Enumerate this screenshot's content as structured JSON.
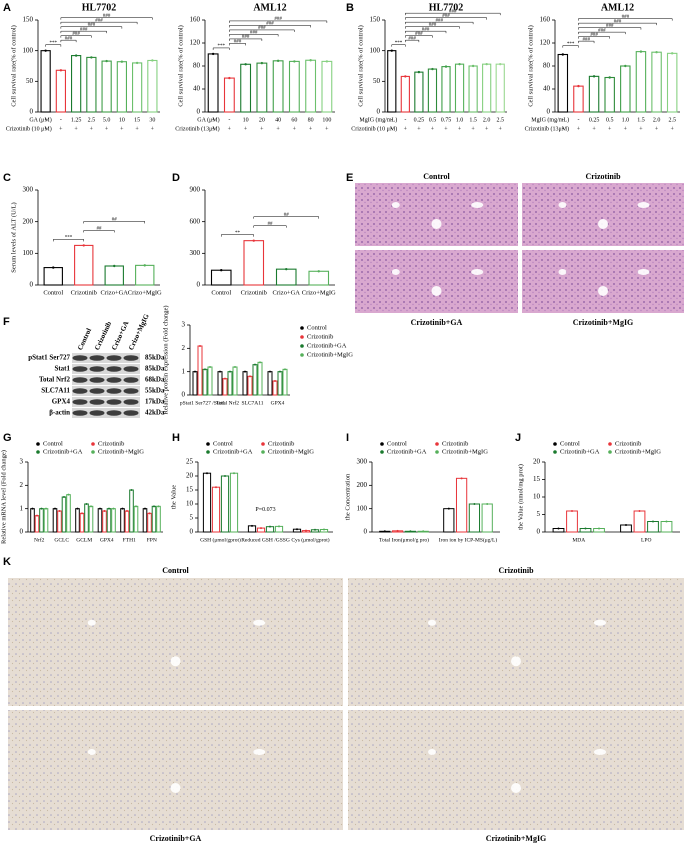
{
  "panels": [
    "A",
    "B",
    "C",
    "D",
    "E",
    "F",
    "G",
    "H",
    "I",
    "J",
    "K"
  ],
  "chart_data": [
    {
      "type": "bar",
      "title": "HL7702",
      "ylabel": "Cell survival rate(% of control)",
      "categories": [
        "-",
        "-",
        "1.25",
        "2.5",
        "5.0",
        "10",
        "15",
        "30"
      ],
      "row_labels": [
        "GA (μM)",
        "Crizotinib (10 μM)"
      ],
      "second_row": [
        "-",
        "+",
        "+",
        "+",
        "+",
        "+",
        "+",
        "+"
      ],
      "values": [
        100,
        68,
        92,
        89,
        83,
        82,
        80,
        84
      ],
      "colors": [
        "#000000",
        "#e8353a",
        "#1a7a2e",
        "#2e8b3a",
        "#3f9e48",
        "#55b05a",
        "#6cc06c",
        "#86d080"
      ],
      "ylim": [
        0,
        150
      ],
      "yticks": [
        0,
        50,
        100,
        150
      ],
      "annotations": [
        "***",
        "###",
        "###",
        "###",
        "###",
        "###",
        "###"
      ]
    },
    {
      "type": "bar",
      "title": "AML12",
      "ylabel": "Cell survival rate(% of control)",
      "categories": [
        "-",
        "-",
        "10",
        "20",
        "40",
        "60",
        "80",
        "100"
      ],
      "row_labels": [
        "GA (μM)",
        "Crizotinib (13μM)"
      ],
      "second_row": [
        "-",
        "+",
        "+",
        "+",
        "+",
        "+",
        "+",
        "+"
      ],
      "values": [
        101,
        59,
        83,
        85,
        89,
        88,
        90,
        88
      ],
      "colors": [
        "#000000",
        "#e8353a",
        "#1a7a2e",
        "#2e8b3a",
        "#3f9e48",
        "#55b05a",
        "#6cc06c",
        "#86d080"
      ],
      "ylim": [
        0,
        160
      ],
      "yticks": [
        0,
        40,
        80,
        120,
        160
      ],
      "annotations": [
        "***",
        "###",
        "###",
        "###",
        "###",
        "###",
        "###"
      ]
    },
    {
      "type": "bar",
      "title": "HL7702",
      "ylabel": "Cell survival rate(% of control)",
      "categories": [
        "-",
        "-",
        "0.25",
        "0.5",
        "0.75",
        "1.0",
        "1.5",
        "2.0",
        "2.5"
      ],
      "row_labels": [
        "MgIG (mg/mL)",
        "Crizotinib (10 μM)"
      ],
      "second_row": [
        "-",
        "+",
        "+",
        "+",
        "+",
        "+",
        "+",
        "+",
        "+"
      ],
      "values": [
        100,
        58,
        65,
        70,
        74,
        78,
        75,
        78,
        78
      ],
      "colors": [
        "#000000",
        "#e8353a",
        "#1a7a2e",
        "#2e8b3a",
        "#3f9e48",
        "#55b05a",
        "#6cc06c",
        "#86d080",
        "#9ad890"
      ],
      "ylim": [
        0,
        150
      ],
      "yticks": [
        0,
        50,
        100,
        150
      ],
      "annotations": [
        "***",
        "###",
        "###",
        "###",
        "###",
        "###",
        "###",
        "###"
      ]
    },
    {
      "type": "bar",
      "title": "AML12",
      "ylabel": "Cell survival rate(% of control)",
      "categories": [
        "-",
        "-",
        "0.25",
        "0.5",
        "1.0",
        "1.5",
        "2.0",
        "2.5"
      ],
      "row_labels": [
        "MgIG (mg/mL)",
        "Crizotinib (13μM)"
      ],
      "second_row": [
        "-",
        "+",
        "+",
        "+",
        "+",
        "+",
        "+",
        "+"
      ],
      "values": [
        100,
        45,
        62,
        60,
        80,
        105,
        104,
        102
      ],
      "colors": [
        "#000000",
        "#e8353a",
        "#1a7a2e",
        "#2e8b3a",
        "#3f9e48",
        "#55b05a",
        "#6cc06c",
        "#86d080"
      ],
      "ylim": [
        0,
        160
      ],
      "yticks": [
        0,
        40,
        80,
        120,
        160
      ],
      "annotations": [
        "***",
        "###",
        "###",
        "###",
        "###",
        "###",
        "###"
      ]
    },
    {
      "type": "bar",
      "ylabel": "Serum levels of ALT (U/L)",
      "categories": [
        "Control",
        "Crizotinib",
        "Crizo+GA",
        "Crizo+MgIG"
      ],
      "values": [
        55,
        125,
        60,
        62
      ],
      "colors": [
        "#000000",
        "#e8353a",
        "#1a7a2e",
        "#55b05a"
      ],
      "ylim": [
        0,
        300
      ],
      "yticks": [
        0,
        100,
        200,
        300
      ],
      "annotations": [
        "***",
        "##",
        "##"
      ]
    },
    {
      "type": "bar",
      "categories": [
        "Control",
        "Crizotinib",
        "Crizo+GA",
        "Crizo+MgIG"
      ],
      "values": [
        140,
        420,
        150,
        130
      ],
      "colors": [
        "#000000",
        "#e8353a",
        "#1a7a2e",
        "#55b05a"
      ],
      "ylim": [
        0,
        900
      ],
      "yticks": [
        0,
        300,
        600,
        900
      ],
      "annotations": [
        "**",
        "##",
        "##"
      ]
    },
    {
      "type": "grouped-bar",
      "ylabel": "Relative protein expression (Fold change)",
      "legend": "right",
      "categories": [
        "pStat1 Ser727 /Stat1",
        "Total Nrf2",
        "SLC7A11",
        "GPX4"
      ],
      "series": [
        {
          "name": "Control",
          "color": "#000000",
          "values": [
            1.0,
            1.0,
            1.0,
            1.0
          ]
        },
        {
          "name": "Crizotinib",
          "color": "#e8353a",
          "values": [
            2.1,
            0.7,
            0.8,
            0.6
          ]
        },
        {
          "name": "Crizotinib+GA",
          "color": "#1a7a2e",
          "values": [
            1.1,
            1.0,
            1.3,
            1.0
          ]
        },
        {
          "name": "Crizotinib+MgIG",
          "color": "#55b05a",
          "values": [
            1.2,
            1.2,
            1.4,
            1.1
          ]
        }
      ],
      "ylim": [
        0,
        3
      ],
      "yticks": [
        0,
        1,
        2,
        3
      ]
    },
    {
      "type": "grouped-bar",
      "ylabel": "Relative mRNA level (Fold change)",
      "legend": "top",
      "categories": [
        "Nrf2",
        "GCLC",
        "GCLM",
        "GPX4",
        "FTH1",
        "FPN"
      ],
      "series": [
        {
          "name": "Control",
          "color": "#000000",
          "values": [
            1.0,
            1.0,
            1.0,
            1.0,
            1.0,
            1.0
          ]
        },
        {
          "name": "Crizotinib",
          "color": "#e8353a",
          "values": [
            0.7,
            0.9,
            0.8,
            0.9,
            0.9,
            0.8
          ]
        },
        {
          "name": "Crizotinib+GA",
          "color": "#1a7a2e",
          "values": [
            1.0,
            1.5,
            1.2,
            1.0,
            1.8,
            1.1
          ]
        },
        {
          "name": "Crizotinib+MgIG",
          "color": "#55b05a",
          "values": [
            1.0,
            1.6,
            1.1,
            1.0,
            1.1,
            1.1
          ]
        }
      ],
      "ylim": [
        0,
        3
      ],
      "yticks": [
        0,
        1,
        2,
        3
      ]
    },
    {
      "type": "grouped-bar",
      "ylabel": "the Value",
      "legend": "top",
      "note": "P=0.073",
      "categories": [
        "GSH (μmol/gprot)",
        "Reduced GSH /GSSG",
        "Cys (μmol/gprot)"
      ],
      "series": [
        {
          "name": "Control",
          "color": "#000000",
          "values": [
            21,
            2.2,
            1.0
          ]
        },
        {
          "name": "Crizotinib",
          "color": "#e8353a",
          "values": [
            16,
            1.4,
            0.5
          ]
        },
        {
          "name": "Crizotinib+GA",
          "color": "#1a7a2e",
          "values": [
            20,
            1.9,
            0.8
          ]
        },
        {
          "name": "Crizotinib+MgIG",
          "color": "#55b05a",
          "values": [
            21,
            2.0,
            0.9
          ]
        }
      ],
      "ylim": [
        0,
        25
      ],
      "yticks": [
        0,
        5,
        10,
        15,
        20,
        25
      ]
    },
    {
      "type": "grouped-bar",
      "ylabel": "the Concentration",
      "legend": "top",
      "categories": [
        "Total Iron(μmol/g pro)",
        "Iron ion by ICP-MS(μg/L)"
      ],
      "series": [
        {
          "name": "Control",
          "color": "#000000",
          "values": [
            3,
            100
          ]
        },
        {
          "name": "Crizotinib",
          "color": "#e8353a",
          "values": [
            5,
            230
          ]
        },
        {
          "name": "Crizotinib+GA",
          "color": "#1a7a2e",
          "values": [
            3,
            120
          ]
        },
        {
          "name": "Crizotinib+MgIG",
          "color": "#55b05a",
          "values": [
            3,
            120
          ]
        }
      ],
      "ylim": [
        0,
        300
      ],
      "yticks": [
        0,
        100,
        200,
        300
      ]
    },
    {
      "type": "grouped-bar",
      "ylabel": "the Value (nmol/mg prot)",
      "legend": "top",
      "categories": [
        "MDA",
        "LPO"
      ],
      "series": [
        {
          "name": "Control",
          "color": "#000000",
          "values": [
            1,
            2
          ]
        },
        {
          "name": "Crizotinib",
          "color": "#e8353a",
          "values": [
            6,
            6
          ]
        },
        {
          "name": "Crizotinib+GA",
          "color": "#1a7a2e",
          "values": [
            1,
            3
          ]
        },
        {
          "name": "Crizotinib+MgIG",
          "color": "#55b05a",
          "values": [
            1,
            3
          ]
        }
      ],
      "ylim": [
        0,
        20
      ],
      "yticks": [
        0,
        5,
        10,
        15,
        20
      ]
    }
  ],
  "he_images": {
    "top_labels": [
      "Control",
      "Crizotinib"
    ],
    "bottom_labels": [
      "Crizotinib+GA",
      "Crizotinib+MgIG"
    ]
  },
  "ihc_images": {
    "top_labels": [
      "Control",
      "Crizotinib"
    ],
    "bottom_labels": [
      "Crizotinib+GA",
      "Crizotinib+MgIG"
    ]
  },
  "blot": {
    "columns": [
      "Control",
      "Crizotinib",
      "Crizo+GA",
      "Crizo+MgIG"
    ],
    "rows": [
      "pStat1 Ser727",
      "Stat1",
      "Total Nrf2",
      "SLC7A11",
      "GPX4",
      "β-actin"
    ],
    "sizes": [
      "85kDa",
      "85kDa",
      "68kDa",
      "55kDa",
      "17kDa",
      "42kDa"
    ]
  }
}
